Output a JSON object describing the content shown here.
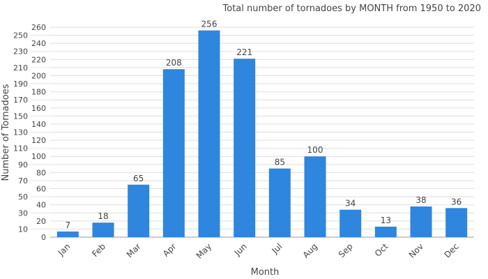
{
  "chart_data": {
    "type": "bar",
    "title": "Total number of tornadoes by MONTH from 1950 to 2020",
    "xlabel": "Month",
    "ylabel": "Number of Tornadoes",
    "categories": [
      "Jan",
      "Feb",
      "Mar",
      "Apr",
      "May",
      "Jun",
      "Jul",
      "Aug",
      "Sep",
      "Oct",
      "Nov",
      "Dec"
    ],
    "values": [
      7,
      18,
      65,
      208,
      256,
      221,
      85,
      100,
      34,
      13,
      38,
      36
    ],
    "ylim": [
      0,
      260
    ],
    "ytick_step": 10,
    "grid": true,
    "bar_color": "#2e86de"
  }
}
